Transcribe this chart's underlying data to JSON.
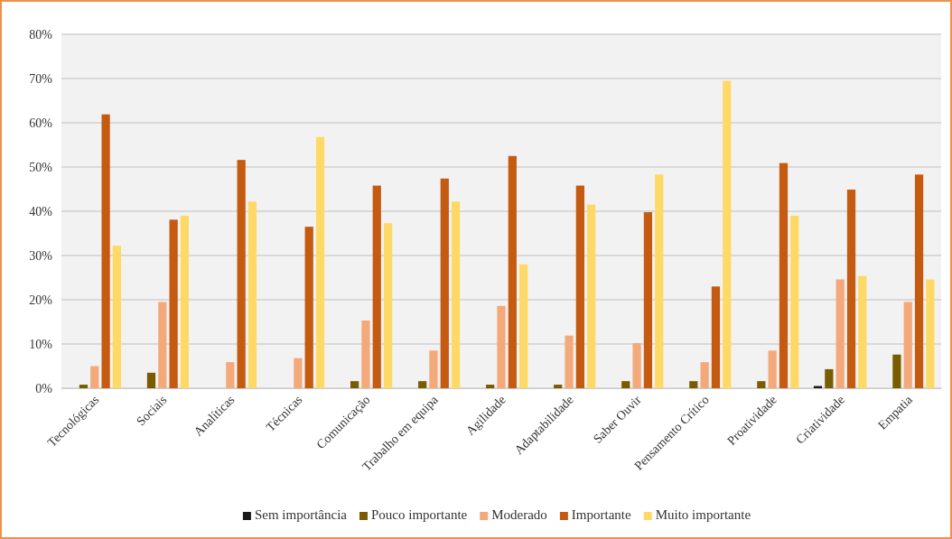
{
  "chart_data": {
    "type": "bar",
    "categories": [
      "Tecnológicas",
      "Sociais",
      "Analíticas",
      "Técnicas",
      "Comunicação",
      "Trabalho em equipa",
      "Agilidade",
      "Adaptabilidade",
      "Saber Ouvir",
      "Pensamento Crítico",
      "Proatividade",
      "Criatividade",
      "Empatia"
    ],
    "series": [
      {
        "name": "Sem importância",
        "color": "#1a1a1a",
        "values": [
          0,
          0,
          0,
          0,
          0,
          0,
          0,
          0,
          0,
          0,
          0,
          0.5,
          0
        ]
      },
      {
        "name": "Pouco importante",
        "color": "#7a5c00",
        "values": [
          0.8,
          3.5,
          0,
          0,
          1.6,
          1.6,
          0.8,
          0.8,
          1.6,
          1.6,
          1.6,
          4.3,
          7.6
        ]
      },
      {
        "name": "Moderado",
        "color": "#f4a97a",
        "values": [
          5.0,
          19.5,
          5.9,
          6.8,
          15.3,
          8.5,
          18.6,
          11.9,
          10.2,
          5.9,
          8.5,
          24.6,
          19.5
        ]
      },
      {
        "name": "Importante",
        "color": "#c55a11",
        "values": [
          61.9,
          38.1,
          51.6,
          36.5,
          45.8,
          47.4,
          52.5,
          45.8,
          39.8,
          23.0,
          50.9,
          44.9,
          48.3
        ]
      },
      {
        "name": "Muito importante",
        "color": "#ffd966",
        "values": [
          32.2,
          39.0,
          42.2,
          56.8,
          37.3,
          42.2,
          28.0,
          41.5,
          48.3,
          69.5,
          39.0,
          25.4,
          24.6
        ]
      }
    ],
    "ylim": [
      0,
      80
    ],
    "yticks": [
      {
        "value": 0,
        "label": "0%"
      },
      {
        "value": 10,
        "label": "10%"
      },
      {
        "value": 20,
        "label": "20%"
      },
      {
        "value": 30,
        "label": "30%"
      },
      {
        "value": 40,
        "label": "40%"
      },
      {
        "value": 50,
        "label": "50%"
      },
      {
        "value": 60,
        "label": "60%"
      },
      {
        "value": 70,
        "label": "70%"
      },
      {
        "value": 80,
        "label": "80%"
      }
    ],
    "grid": "y",
    "legend": "bottom"
  }
}
